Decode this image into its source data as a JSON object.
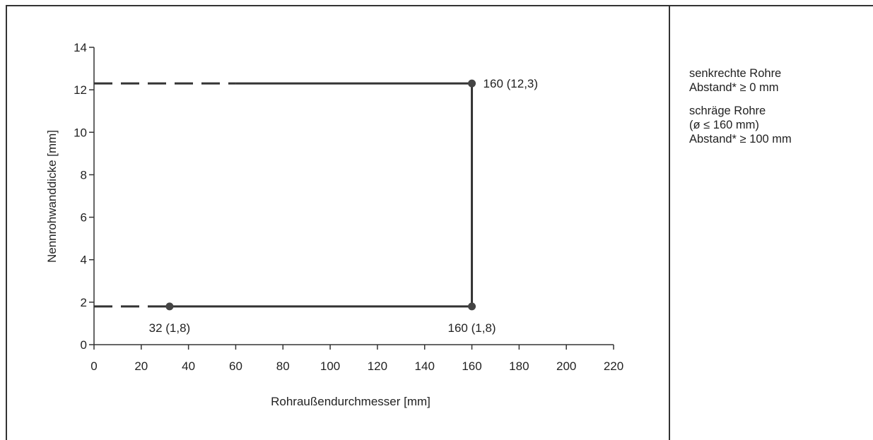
{
  "chart_data": {
    "type": "line",
    "xlabel": "Rohraußendurchmesser [mm]",
    "ylabel": "Nennrohwanddicke [mm]",
    "xlim": [
      0,
      220
    ],
    "ylim": [
      0,
      14
    ],
    "xticks": [
      0,
      20,
      40,
      60,
      80,
      100,
      120,
      140,
      160,
      180,
      200,
      220
    ],
    "yticks": [
      0,
      2,
      4,
      6,
      8,
      10,
      12,
      14
    ],
    "grid": false,
    "segments": [
      {
        "style": "dashed",
        "points": [
          [
            0,
            1.8
          ],
          [
            32,
            1.8
          ]
        ]
      },
      {
        "style": "solid",
        "points": [
          [
            32,
            1.8
          ],
          [
            160,
            1.8
          ]
        ]
      },
      {
        "style": "solid",
        "points": [
          [
            160,
            1.8
          ],
          [
            160,
            12.3
          ]
        ]
      },
      {
        "style": "solid",
        "points": [
          [
            60,
            12.3
          ],
          [
            160,
            12.3
          ]
        ]
      },
      {
        "style": "dashed",
        "points": [
          [
            0,
            12.3
          ],
          [
            60,
            12.3
          ]
        ]
      }
    ],
    "points": [
      {
        "x": 32,
        "y": 1.8,
        "label": "32 (1,8)",
        "label_pos": "below"
      },
      {
        "x": 160,
        "y": 1.8,
        "label": "160 (1,8)",
        "label_pos": "below"
      },
      {
        "x": 160,
        "y": 12.3,
        "label": "160 (12,3)",
        "label_pos": "right"
      }
    ]
  },
  "notes": {
    "vertical_title": "senkrechte Rohre",
    "vertical_distance": "Abstand* ≥ 0 mm",
    "slanted_title": "schräge Rohre",
    "slanted_condition": "(ø ≤ 160 mm)",
    "slanted_distance": "Abstand* ≥ 100 mm"
  }
}
